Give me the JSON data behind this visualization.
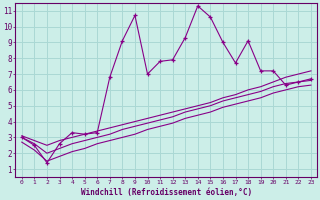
{
  "xlabel": "Windchill (Refroidissement éolien,°C)",
  "ylabel": "",
  "bg_color": "#cceee8",
  "grid_color": "#aad8d4",
  "line_color": "#880088",
  "xlim": [
    -0.5,
    23.5
  ],
  "ylim": [
    0.5,
    11.5
  ],
  "xticks": [
    0,
    1,
    2,
    3,
    4,
    5,
    6,
    7,
    8,
    9,
    10,
    11,
    12,
    13,
    14,
    15,
    16,
    17,
    18,
    19,
    20,
    21,
    22,
    23
  ],
  "yticks": [
    1,
    2,
    3,
    4,
    5,
    6,
    7,
    8,
    9,
    10,
    11
  ],
  "series_main": [
    3.0,
    2.5,
    1.4,
    2.6,
    3.3,
    3.2,
    3.3,
    6.8,
    9.1,
    10.7,
    7.0,
    7.8,
    7.9,
    9.3,
    11.3,
    10.6,
    9.0,
    7.7,
    9.1,
    7.2,
    7.2,
    6.3,
    6.5,
    6.7
  ],
  "series_linear1": [
    3.1,
    2.8,
    2.5,
    2.8,
    3.0,
    3.2,
    3.4,
    3.6,
    3.8,
    4.0,
    4.2,
    4.4,
    4.6,
    4.8,
    5.0,
    5.2,
    5.5,
    5.7,
    6.0,
    6.2,
    6.5,
    6.8,
    7.0,
    7.2
  ],
  "series_linear2": [
    3.0,
    2.6,
    2.0,
    2.3,
    2.6,
    2.8,
    3.0,
    3.2,
    3.5,
    3.7,
    3.9,
    4.1,
    4.3,
    4.6,
    4.8,
    5.0,
    5.3,
    5.5,
    5.7,
    5.9,
    6.2,
    6.4,
    6.5,
    6.6
  ],
  "series_linear3": [
    2.7,
    2.2,
    1.5,
    1.8,
    2.1,
    2.3,
    2.6,
    2.8,
    3.0,
    3.2,
    3.5,
    3.7,
    3.9,
    4.2,
    4.4,
    4.6,
    4.9,
    5.1,
    5.3,
    5.5,
    5.8,
    6.0,
    6.2,
    6.3
  ]
}
